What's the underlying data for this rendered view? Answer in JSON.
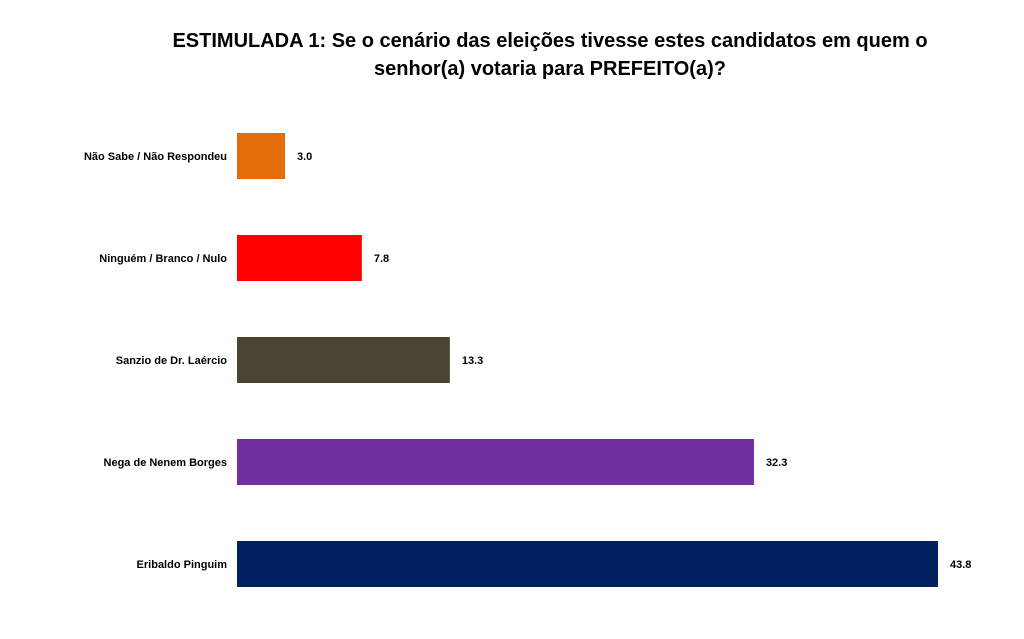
{
  "chart_data": {
    "type": "bar",
    "orientation": "horizontal",
    "title": "ESTIMULADA 1: Se o cenário das eleições tivesse estes candidatos em quem o senhor(a) votaria para PREFEITO(a)?",
    "categories": [
      "Não Sabe / Não Respondeu",
      "Ninguém / Branco / Nulo",
      "Sanzio de Dr. Laércio",
      "Nega de Nenem Borges",
      "Eribaldo Pinguim"
    ],
    "values": [
      3.0,
      7.8,
      13.3,
      32.3,
      43.8
    ],
    "value_labels": [
      "3.0",
      "7.8",
      "13.3",
      "32.3",
      "43.8"
    ],
    "colors": [
      "#e46c0a",
      "#ff0000",
      "#4a4532",
      "#7030a0",
      "#002060"
    ],
    "xlim": [
      0,
      43.8
    ],
    "grid": false,
    "legend": "none"
  }
}
